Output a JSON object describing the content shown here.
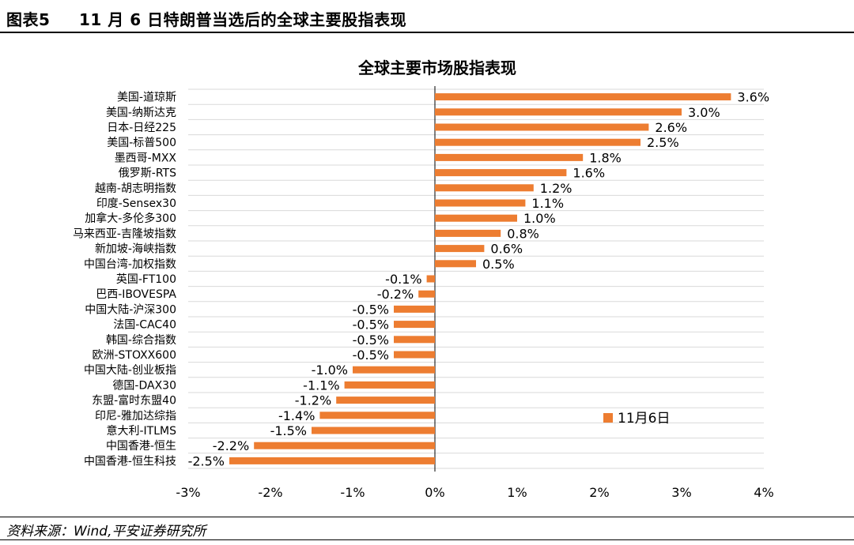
{
  "figure": {
    "label": "图表5",
    "title": "11 月 6 日特朗普当选后的全球主要股指表现",
    "source": "资料来源：Wind,平安证券研究所"
  },
  "colors": {
    "bar": "#ED7D31",
    "grid": "#D9D9D9",
    "axis": "#000000"
  },
  "chart_data": {
    "type": "bar",
    "orientation": "horizontal",
    "title": "全球主要市场股指表现",
    "categories": [
      "美国-道琼斯",
      "美国-纳斯达克",
      "日本-日经225",
      "美国-标普500",
      "墨西哥-MXX",
      "俄罗斯-RTS",
      "越南-胡志明指数",
      "印度-Sensex30",
      "加拿大-多伦多300",
      "马来西亚-吉隆坡指数",
      "新加坡-海峡指数",
      "中国台湾-加权指数",
      "英国-FT100",
      "巴西-IBOVESPA",
      "中国大陆-沪深300",
      "法国-CAC40",
      "韩国-综合指数",
      "欧洲-STOXX600",
      "中国大陆-创业板指",
      "德国-DAX30",
      "东盟-富时东盟40",
      "印尼-雅加达综指",
      "意大利-ITLMS",
      "中国香港-恒生",
      "中国香港-恒生科技"
    ],
    "series": [
      {
        "name": "11月6日",
        "values": [
          3.6,
          3.0,
          2.6,
          2.5,
          1.8,
          1.6,
          1.2,
          1.1,
          1.0,
          0.8,
          0.6,
          0.5,
          -0.1,
          -0.2,
          -0.5,
          -0.5,
          -0.5,
          -0.5,
          -1.0,
          -1.1,
          -1.2,
          -1.4,
          -1.5,
          -2.2,
          -2.5
        ],
        "labels": [
          "3.6%",
          "3.0%",
          "2.6%",
          "2.5%",
          "1.8%",
          "1.6%",
          "1.2%",
          "1.1%",
          "1.0%",
          "0.8%",
          "0.6%",
          "0.5%",
          "-0.1%",
          "-0.2%",
          "-0.5%",
          "-0.5%",
          "-0.5%",
          "-0.5%",
          "-1.0%",
          "-1.1%",
          "-1.2%",
          "-1.4%",
          "-1.5%",
          "-2.2%",
          "-2.5%"
        ]
      }
    ],
    "xlim": [
      -3,
      4
    ],
    "xticks": [
      -3,
      -2,
      -1,
      0,
      1,
      2,
      3,
      4
    ],
    "xtick_labels": [
      "-3%",
      "-2%",
      "-1%",
      "0%",
      "1%",
      "2%",
      "3%",
      "4%"
    ],
    "grid": true,
    "legend_position": "lower-right"
  }
}
